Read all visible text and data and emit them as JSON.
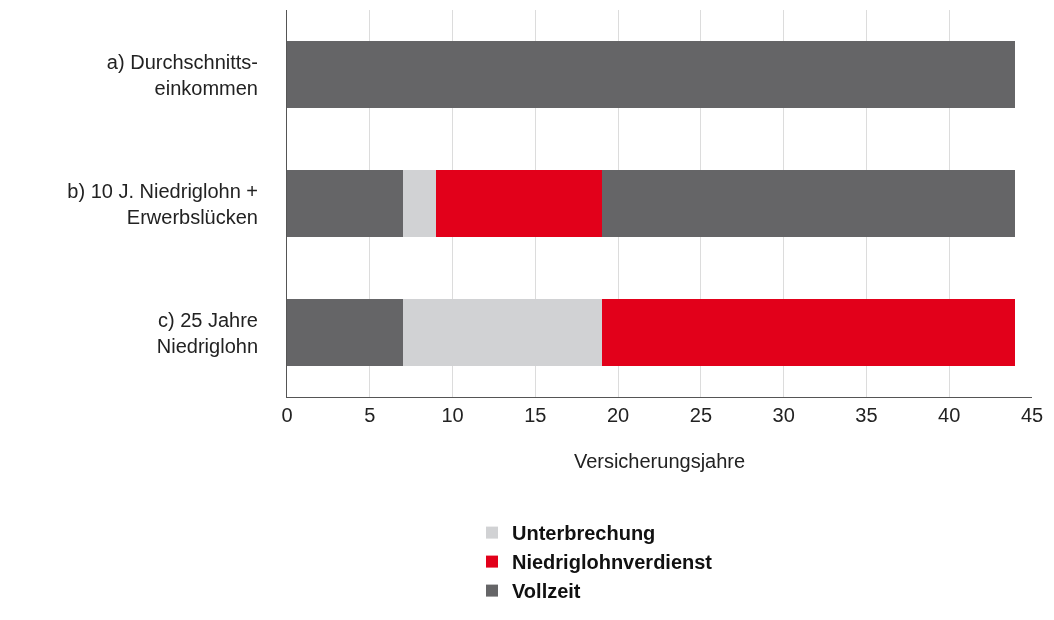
{
  "chart_data": {
    "type": "bar",
    "orientation": "horizontal",
    "stacked": true,
    "categories": [
      "a) Durchschnitts-\neinkommen",
      "b) 10 J. Niedriglohn +\nErwerbslücken",
      "c) 25 Jahre\nNiedriglohn"
    ],
    "series": [
      {
        "name": "Vollzeit",
        "color": "#656567",
        "values": [
          44,
          7,
          7
        ]
      },
      {
        "name": "Unterbrechung",
        "color": "#d1d2d4",
        "values": [
          0,
          2,
          12
        ]
      },
      {
        "name": "Niedriglohnverdienst",
        "color": "#e2001a",
        "values": [
          0,
          10,
          25
        ]
      },
      {
        "color": "#656567",
        "values": [
          0,
          25,
          0
        ]
      }
    ],
    "xlim": [
      0,
      45
    ],
    "xticks": [
      0,
      5,
      10,
      15,
      20,
      25,
      30,
      35,
      40,
      45
    ],
    "xlabel": "Versicherungsjahre",
    "grid": "x",
    "legend": "bottom"
  }
}
